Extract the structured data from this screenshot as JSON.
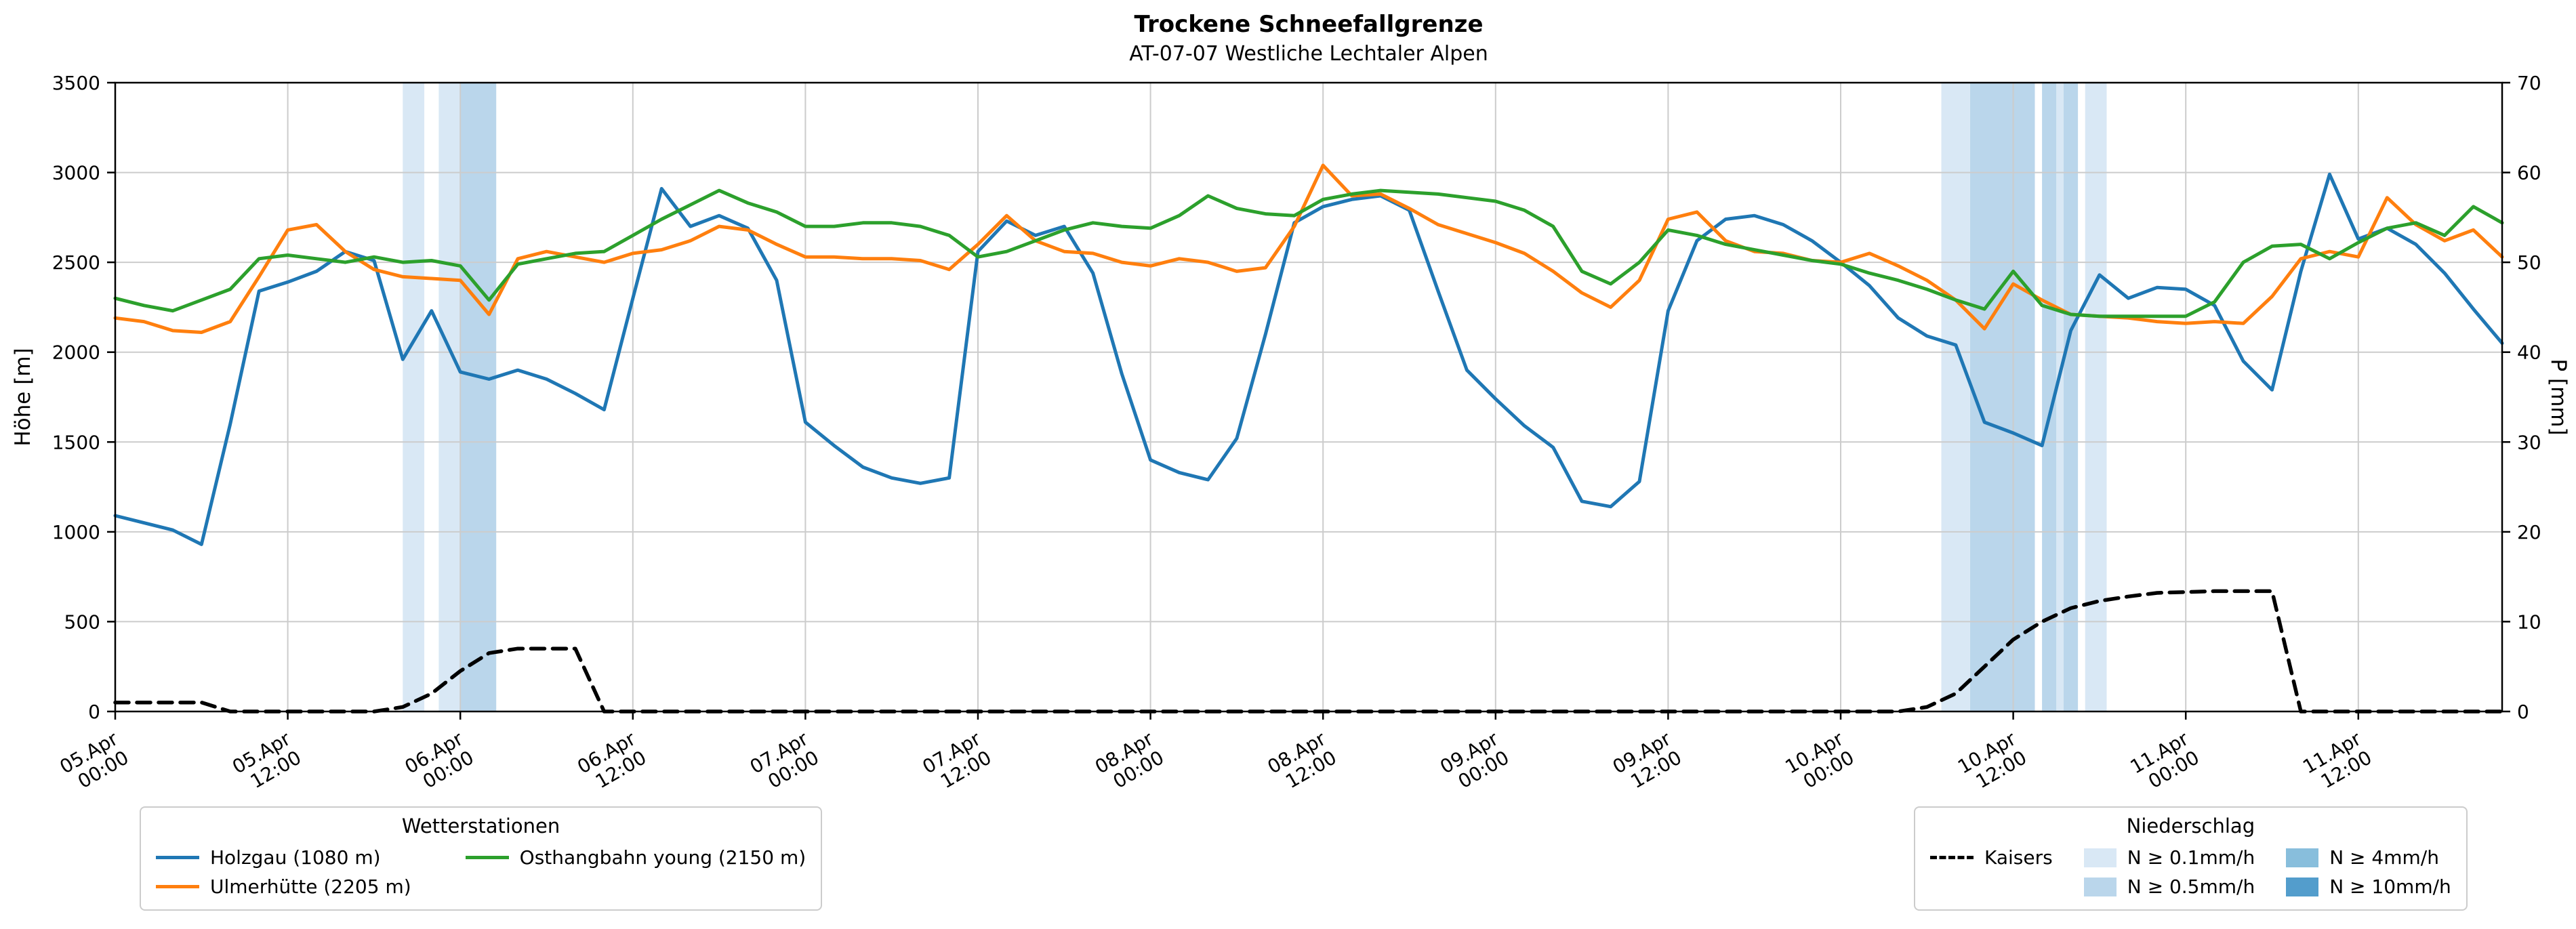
{
  "title": "Trockene Schneefallgrenze",
  "subtitle": "AT-07-07 Westliche Lechtaler Alpen",
  "chart_data": {
    "type": "line",
    "title": "Trockene Schneefallgrenze",
    "subtitle": "AT-07-07 Westliche Lechtaler Alpen",
    "grid": true,
    "grid_color": "#cccccc",
    "x_axis": {
      "unit": "hours since 05.Apr 00:00",
      "range": [
        0,
        166
      ],
      "ticks": [
        {
          "h": 0,
          "line1": "05.Apr",
          "line2": "00:00"
        },
        {
          "h": 12,
          "line1": "05.Apr",
          "line2": "12:00"
        },
        {
          "h": 24,
          "line1": "06.Apr",
          "line2": "00:00"
        },
        {
          "h": 36,
          "line1": "06.Apr",
          "line2": "12:00"
        },
        {
          "h": 48,
          "line1": "07.Apr",
          "line2": "00:00"
        },
        {
          "h": 60,
          "line1": "07.Apr",
          "line2": "12:00"
        },
        {
          "h": 72,
          "line1": "08.Apr",
          "line2": "00:00"
        },
        {
          "h": 84,
          "line1": "08.Apr",
          "line2": "12:00"
        },
        {
          "h": 96,
          "line1": "09.Apr",
          "line2": "00:00"
        },
        {
          "h": 108,
          "line1": "09.Apr",
          "line2": "12:00"
        },
        {
          "h": 120,
          "line1": "10.Apr",
          "line2": "00:00"
        },
        {
          "h": 132,
          "line1": "10.Apr",
          "line2": "12:00"
        },
        {
          "h": 144,
          "line1": "11.Apr",
          "line2": "00:00"
        },
        {
          "h": 156,
          "line1": "11.Apr",
          "line2": "12:00"
        }
      ]
    },
    "y_left": {
      "label": "Höhe [m]",
      "range": [
        0,
        3500
      ],
      "ticks": [
        0,
        500,
        1000,
        1500,
        2000,
        2500,
        3000,
        3500
      ]
    },
    "y_right": {
      "label": "P [mm]",
      "range": [
        0,
        70
      ],
      "ticks": [
        0,
        10,
        20,
        30,
        40,
        50,
        60,
        70
      ]
    },
    "hours": [
      0,
      2,
      4,
      6,
      8,
      10,
      12,
      14,
      16,
      18,
      20,
      22,
      24,
      26,
      28,
      30,
      32,
      34,
      36,
      38,
      40,
      42,
      44,
      46,
      48,
      50,
      52,
      54,
      56,
      58,
      60,
      62,
      64,
      66,
      68,
      70,
      72,
      74,
      76,
      78,
      80,
      82,
      84,
      86,
      88,
      90,
      92,
      94,
      96,
      98,
      100,
      102,
      104,
      106,
      108,
      110,
      112,
      114,
      116,
      118,
      120,
      122,
      124,
      126,
      128,
      130,
      132,
      134,
      136,
      138,
      140,
      142,
      144,
      146,
      148,
      150,
      152,
      154,
      156,
      158,
      160,
      162,
      164,
      166
    ],
    "series": [
      {
        "name": "Holzgau (1080 m)",
        "color": "#1f77b4",
        "axis": "left",
        "style": "solid",
        "values": [
          1090,
          1050,
          1010,
          930,
          1600,
          2340,
          2390,
          2450,
          2560,
          2510,
          1960,
          2230,
          1890,
          1850,
          1900,
          1850,
          1770,
          1680,
          2300,
          2910,
          2700,
          2760,
          2690,
          2400,
          1610,
          1480,
          1360,
          1300,
          1270,
          1300,
          2560,
          2730,
          2650,
          2700,
          2440,
          1880,
          1400,
          1330,
          1290,
          1520,
          2100,
          2720,
          2810,
          2850,
          2870,
          2790,
          2340,
          1900,
          1740,
          1590,
          1470,
          1170,
          1140,
          1280,
          2230,
          2620,
          2740,
          2760,
          2710,
          2620,
          2500,
          2370,
          2190,
          2090,
          2040,
          1610,
          1550,
          1480,
          2120,
          2430,
          2300,
          2360,
          2350,
          2260,
          1950,
          1790,
          2450,
          2990,
          2630,
          2690,
          2600,
          2440,
          2240,
          2050
        ]
      },
      {
        "name": "Ulmerhütte (2205 m)",
        "color": "#ff7f0e",
        "axis": "left",
        "style": "solid",
        "values": [
          2190,
          2170,
          2120,
          2110,
          2170,
          2420,
          2680,
          2710,
          2560,
          2460,
          2420,
          2410,
          2400,
          2210,
          2520,
          2560,
          2530,
          2500,
          2550,
          2570,
          2620,
          2700,
          2680,
          2600,
          2530,
          2530,
          2520,
          2520,
          2510,
          2460,
          2600,
          2760,
          2620,
          2560,
          2550,
          2500,
          2480,
          2520,
          2500,
          2450,
          2470,
          2700,
          3040,
          2870,
          2880,
          2800,
          2710,
          2660,
          2610,
          2550,
          2450,
          2330,
          2250,
          2400,
          2740,
          2780,
          2620,
          2560,
          2550,
          2510,
          2500,
          2550,
          2480,
          2400,
          2290,
          2130,
          2380,
          2290,
          2210,
          2200,
          2190,
          2170,
          2160,
          2170,
          2160,
          2310,
          2520,
          2560,
          2530,
          2860,
          2710,
          2620,
          2680,
          2530
        ]
      },
      {
        "name": "Osthangbahn young (2150 m)",
        "color": "#2ca02c",
        "axis": "left",
        "style": "solid",
        "values": [
          2300,
          2260,
          2230,
          2290,
          2350,
          2520,
          2540,
          2520,
          2500,
          2530,
          2500,
          2510,
          2480,
          2290,
          2490,
          2520,
          2550,
          2560,
          2650,
          2740,
          2820,
          2900,
          2830,
          2780,
          2700,
          2700,
          2720,
          2720,
          2700,
          2650,
          2530,
          2560,
          2620,
          2680,
          2720,
          2700,
          2690,
          2760,
          2870,
          2800,
          2770,
          2760,
          2850,
          2880,
          2900,
          2890,
          2880,
          2860,
          2840,
          2790,
          2700,
          2450,
          2380,
          2500,
          2680,
          2650,
          2600,
          2570,
          2540,
          2510,
          2490,
          2440,
          2400,
          2350,
          2290,
          2240,
          2450,
          2260,
          2210,
          2200,
          2200,
          2200,
          2200,
          2280,
          2500,
          2590,
          2600,
          2520,
          2610,
          2690,
          2720,
          2650,
          2810,
          2720
        ]
      },
      {
        "name": "Kaisers",
        "color": "#000000",
        "axis": "right",
        "style": "dashed",
        "values": [
          1,
          1,
          1,
          1,
          0,
          0,
          0,
          0,
          0,
          0,
          0.5,
          2,
          4.5,
          6.5,
          7,
          7,
          7,
          0,
          0,
          0,
          0,
          0,
          0,
          0,
          0,
          0,
          0,
          0,
          0,
          0,
          0,
          0,
          0,
          0,
          0,
          0,
          0,
          0,
          0,
          0,
          0,
          0,
          0,
          0,
          0,
          0,
          0,
          0,
          0,
          0,
          0,
          0,
          0,
          0,
          0,
          0,
          0,
          0,
          0,
          0,
          0,
          0,
          0,
          0.5,
          2,
          5,
          8,
          10,
          11.5,
          12.3,
          12.8,
          13.2,
          13.3,
          13.4,
          13.4,
          13.4,
          0,
          0,
          0,
          0,
          0,
          0,
          0,
          0
        ]
      }
    ],
    "precip_levels": {
      "0.1": "#d9e8f5",
      "0.5": "#bad6eb",
      "4": "#88bedc",
      "10": "#539dcc"
    },
    "precip_bands": [
      {
        "start_h": 20,
        "end_h": 21.5,
        "level": "0.1"
      },
      {
        "start_h": 22.5,
        "end_h": 24,
        "level": "0.1"
      },
      {
        "start_h": 24,
        "end_h": 26.5,
        "level": "0.5"
      },
      {
        "start_h": 127,
        "end_h": 129,
        "level": "0.1"
      },
      {
        "start_h": 129,
        "end_h": 133.5,
        "level": "0.5"
      },
      {
        "start_h": 134,
        "end_h": 135,
        "level": "0.5"
      },
      {
        "start_h": 135,
        "end_h": 135.5,
        "level": "0.1"
      },
      {
        "start_h": 135.5,
        "end_h": 136.5,
        "level": "0.5"
      },
      {
        "start_h": 137,
        "end_h": 138.5,
        "level": "0.1"
      }
    ]
  },
  "legends": {
    "stations": {
      "title": "Wetterstationen",
      "items": [
        {
          "label": "Holzgau (1080 m)",
          "color": "#1f77b4"
        },
        {
          "label": "Ulmerhütte (2205 m)",
          "color": "#ff7f0e"
        },
        {
          "label": "Osthangbahn young (2150 m)",
          "color": "#2ca02c"
        }
      ]
    },
    "precip": {
      "title": "Niederschlag",
      "kaisers": {
        "label": "Kaisers",
        "color": "#000000"
      },
      "patches": [
        {
          "label": "N ≥ 0.1mm/h",
          "color": "#d9e8f5"
        },
        {
          "label": "N ≥ 0.5mm/h",
          "color": "#bad6eb"
        },
        {
          "label": "N ≥ 4mm/h",
          "color": "#88bedc"
        },
        {
          "label": "N ≥ 10mm/h",
          "color": "#539dcc"
        }
      ]
    }
  }
}
